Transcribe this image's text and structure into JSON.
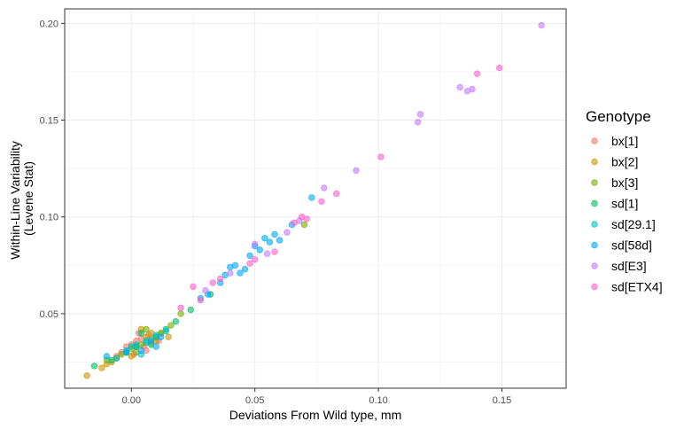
{
  "chart_data": {
    "type": "scatter",
    "title": "",
    "xlabel": "Deviations From Wild type, mm",
    "ylabel_lines": [
      "Within-Line Variability",
      "(Levene Stat)"
    ],
    "xlim": [
      -0.027,
      0.176
    ],
    "ylim": [
      0.0115,
      0.2075
    ],
    "x_ticks": [
      0.0,
      0.05,
      0.1,
      0.15
    ],
    "x_tick_labels": [
      "0.00",
      "0.05",
      "0.10",
      "0.15"
    ],
    "y_ticks": [
      0.05,
      0.1,
      0.15,
      0.2
    ],
    "y_tick_labels": [
      "0.05",
      "0.10",
      "0.15",
      "0.20"
    ],
    "grid": true,
    "legend": {
      "title": "Genotype",
      "position": "right"
    },
    "point_opacity": 0.6,
    "series": [
      {
        "name": "bx[1]",
        "color": "#F8766D",
        "x": [
          -0.004,
          -0.002,
          0.0,
          0.002,
          0.004,
          0.006,
          0.008,
          0.01,
          0.001,
          0.003,
          -0.006,
          0.005,
          0.007,
          0.011
        ],
        "y": [
          0.03,
          0.033,
          0.034,
          0.036,
          0.037,
          0.031,
          0.035,
          0.038,
          0.029,
          0.04,
          0.028,
          0.033,
          0.039,
          0.036
        ]
      },
      {
        "name": "bx[2]",
        "color": "#CD9600",
        "x": [
          -0.018,
          -0.012,
          -0.01,
          -0.006,
          -0.002,
          0.002,
          0.006,
          0.01,
          0.012,
          0.015,
          0.004,
          0.008,
          -0.008,
          0.0
        ],
        "y": [
          0.018,
          0.022,
          0.024,
          0.027,
          0.03,
          0.033,
          0.038,
          0.036,
          0.04,
          0.038,
          0.042,
          0.04,
          0.025,
          0.028
        ]
      },
      {
        "name": "bx[3]",
        "color": "#7CAE00",
        "x": [
          -0.01,
          -0.004,
          0.0,
          0.004,
          0.008,
          0.012,
          0.016,
          0.02,
          0.006,
          0.002,
          0.07
        ],
        "y": [
          0.026,
          0.029,
          0.032,
          0.034,
          0.037,
          0.04,
          0.044,
          0.05,
          0.042,
          0.03,
          0.096
        ]
      },
      {
        "name": "sd[1]",
        "color": "#00BE67",
        "x": [
          -0.015,
          -0.008,
          -0.002,
          0.002,
          0.006,
          0.01,
          0.014,
          0.018,
          0.024,
          0.032,
          0.004,
          0.008
        ],
        "y": [
          0.023,
          0.026,
          0.03,
          0.033,
          0.035,
          0.038,
          0.042,
          0.046,
          0.052,
          0.06,
          0.04,
          0.034
        ]
      },
      {
        "name": "sd[29.1]",
        "color": "#00BFC4",
        "x": [
          -0.006,
          -0.002,
          0.002,
          0.006,
          0.01,
          0.014,
          0.004,
          0.0
        ],
        "y": [
          0.027,
          0.031,
          0.034,
          0.036,
          0.039,
          0.041,
          0.029,
          0.033
        ]
      },
      {
        "name": "sd[58d]",
        "color": "#00A9FF",
        "x": [
          -0.01,
          -0.002,
          0.004,
          0.008,
          0.01,
          0.012,
          0.028,
          0.031,
          0.036,
          0.038,
          0.04,
          0.042,
          0.044,
          0.046,
          0.048,
          0.05,
          0.052,
          0.054,
          0.056,
          0.058,
          0.06,
          0.065,
          0.073
        ],
        "y": [
          0.028,
          0.03,
          0.031,
          0.036,
          0.033,
          0.038,
          0.058,
          0.06,
          0.066,
          0.07,
          0.074,
          0.075,
          0.071,
          0.073,
          0.08,
          0.085,
          0.083,
          0.089,
          0.087,
          0.091,
          0.088,
          0.096,
          0.11
        ]
      },
      {
        "name": "sd[E3]",
        "color": "#C77CFF",
        "x": [
          0.03,
          0.04,
          0.05,
          0.055,
          0.063,
          0.068,
          0.078,
          0.091,
          0.116,
          0.117,
          0.133,
          0.136,
          0.138,
          0.166
        ],
        "y": [
          0.062,
          0.071,
          0.086,
          0.081,
          0.092,
          0.098,
          0.115,
          0.124,
          0.149,
          0.153,
          0.167,
          0.165,
          0.166,
          0.199
        ]
      },
      {
        "name": "sd[ETX4]",
        "color": "#FF61CC",
        "x": [
          0.02,
          0.025,
          0.028,
          0.033,
          0.036,
          0.048,
          0.05,
          0.058,
          0.066,
          0.069,
          0.071,
          0.077,
          0.083,
          0.101,
          0.14,
          0.149
        ],
        "y": [
          0.053,
          0.064,
          0.057,
          0.066,
          0.068,
          0.076,
          0.078,
          0.082,
          0.097,
          0.1,
          0.099,
          0.108,
          0.112,
          0.131,
          0.174,
          0.177
        ]
      }
    ]
  }
}
